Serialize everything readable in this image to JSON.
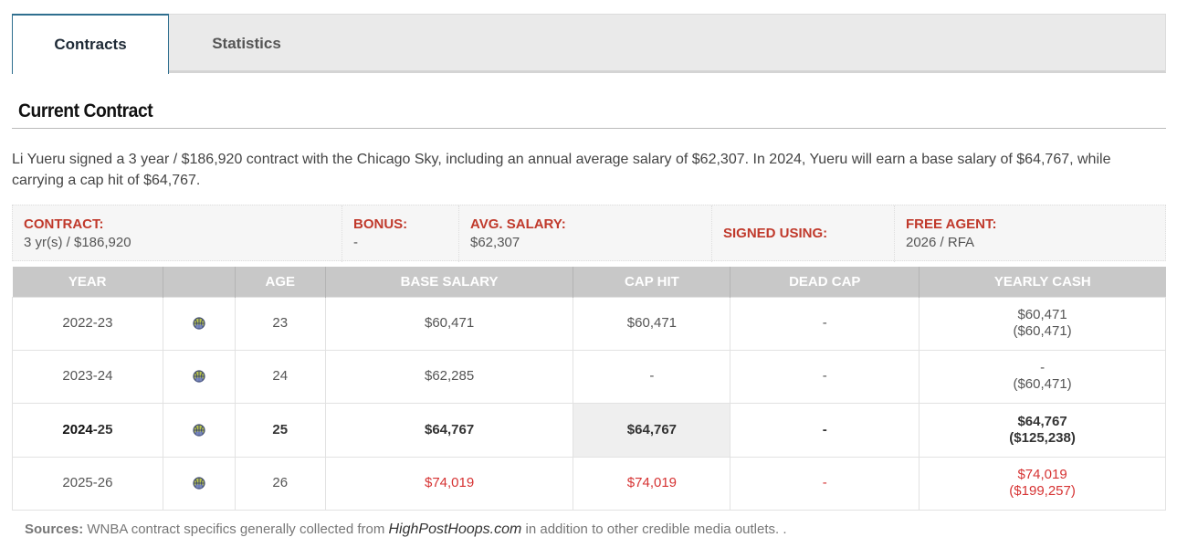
{
  "tabs": [
    {
      "label": "Contracts",
      "active": true
    },
    {
      "label": "Statistics",
      "active": false
    }
  ],
  "heading": "Current Contract",
  "summary": "Li Yueru signed a 3 year / $186,920 contract with the Chicago Sky, including an annual average salary of $62,307. In 2024, Yueru will earn a base salary of $64,767, while carrying a cap hit of $64,767.",
  "info": {
    "contract": {
      "label": "CONTRACT:",
      "value": "3 yr(s) / $186,920"
    },
    "bonus": {
      "label": "BONUS:",
      "value": "-"
    },
    "avg_salary": {
      "label": "AVG. SALARY:",
      "value": "$62,307"
    },
    "signed_using": {
      "label": "SIGNED USING:",
      "value": ""
    },
    "free_agent": {
      "label": "FREE AGENT:",
      "value": "2026 / RFA"
    }
  },
  "table": {
    "headers": [
      "YEAR",
      "",
      "AGE",
      "BASE SALARY",
      "CAP HIT",
      "DEAD CAP",
      "YEARLY CASH"
    ],
    "rows": [
      {
        "year": "2022-23",
        "icon": "team-logo-icon",
        "age": "23",
        "base": "$60,471",
        "cap": "$60,471",
        "dead": "-",
        "cash": "$60,471",
        "cash_total": "($60,471)"
      },
      {
        "year": "2023-24",
        "icon": "team-logo-icon",
        "age": "24",
        "base": "$62,285",
        "cap": "-",
        "dead": "-",
        "cash": "-",
        "cash_total": "($60,471)"
      },
      {
        "year_a": "2024",
        "year_b": "-25",
        "icon": "team-logo-icon",
        "age": "25",
        "base": "$64,767",
        "cap": "$64,767",
        "dead": "-",
        "cash": "$64,767",
        "cash_total": "($125,238)"
      },
      {
        "year": "2025-26",
        "icon": "team-logo-icon",
        "age": "26",
        "base": "$74,019",
        "cap": "$74,019",
        "dead": "-",
        "cash": "$74,019",
        "cash_total": "($199,257)"
      }
    ]
  },
  "sources": {
    "label": "Sources:",
    "text_before": " WNBA contract specifics generally collected from ",
    "link": "HighPostHoops.com",
    "text_after": " in addition to other credible media outlets. ."
  },
  "colors": {
    "accent": "#2f6f8f",
    "label_red": "#c0392b",
    "future_red": "#d63333",
    "header_gray": "#c8c8c8"
  }
}
